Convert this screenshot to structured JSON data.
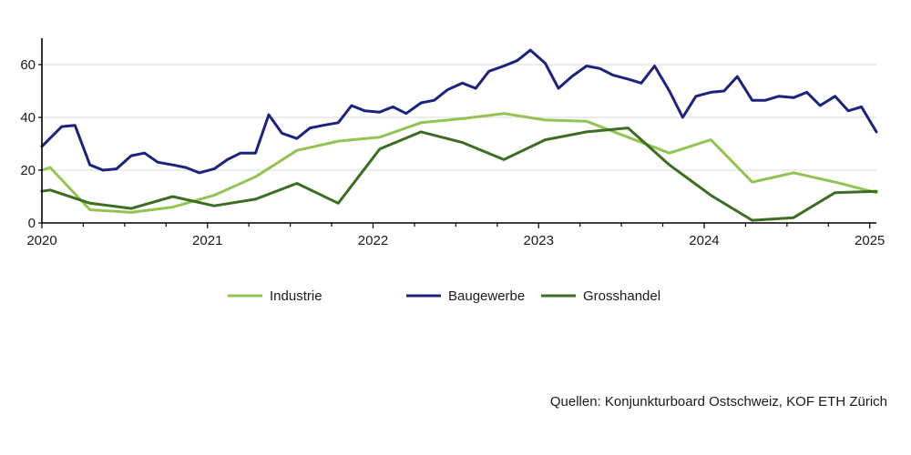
{
  "chart_data": {
    "type": "line",
    "title": "",
    "xlabel": "",
    "ylabel": "",
    "xlim": [
      2020.0,
      2025.04
    ],
    "ylim": [
      0,
      70
    ],
    "y_ticks": [
      0,
      20,
      40,
      60
    ],
    "x_ticks": [
      2020,
      2021,
      2022,
      2023,
      2024,
      2025
    ],
    "x_tick_labels": [
      "2020",
      "2021",
      "2022",
      "2023",
      "2024",
      "2025"
    ],
    "grid": "horizontal",
    "legend_position": "bottom",
    "series": [
      {
        "name": "Industrie",
        "color": "#92c353",
        "points": [
          [
            2020.0,
            20
          ],
          [
            2020.05,
            21
          ],
          [
            2020.29,
            5
          ],
          [
            2020.54,
            4
          ],
          [
            2020.79,
            6
          ],
          [
            2021.04,
            10.5
          ],
          [
            2021.29,
            17.5
          ],
          [
            2021.54,
            27.5
          ],
          [
            2021.79,
            31
          ],
          [
            2022.04,
            32.5
          ],
          [
            2022.29,
            38
          ],
          [
            2022.54,
            39.5
          ],
          [
            2022.79,
            41.5
          ],
          [
            2023.04,
            39
          ],
          [
            2023.29,
            38.5
          ],
          [
            2023.54,
            32.5
          ],
          [
            2023.79,
            26.5
          ],
          [
            2024.04,
            31.5
          ],
          [
            2024.29,
            15.5
          ],
          [
            2024.54,
            19
          ],
          [
            2024.79,
            15.5
          ],
          [
            2025.04,
            11.5
          ]
        ]
      },
      {
        "name": "Baugewerbe",
        "color": "#1a237e",
        "points": [
          [
            2020.0,
            29
          ],
          [
            2020.12,
            36.5
          ],
          [
            2020.2,
            37
          ],
          [
            2020.29,
            22
          ],
          [
            2020.37,
            20
          ],
          [
            2020.45,
            20.5
          ],
          [
            2020.54,
            25.5
          ],
          [
            2020.62,
            26.5
          ],
          [
            2020.7,
            23
          ],
          [
            2020.79,
            22
          ],
          [
            2020.87,
            21
          ],
          [
            2020.95,
            19
          ],
          [
            2021.04,
            20.5
          ],
          [
            2021.12,
            24
          ],
          [
            2021.2,
            26.5
          ],
          [
            2021.29,
            26.5
          ],
          [
            2021.37,
            41
          ],
          [
            2021.45,
            34
          ],
          [
            2021.54,
            32
          ],
          [
            2021.62,
            36
          ],
          [
            2021.7,
            37
          ],
          [
            2021.79,
            38
          ],
          [
            2021.87,
            44.5
          ],
          [
            2021.95,
            42.5
          ],
          [
            2022.04,
            42
          ],
          [
            2022.12,
            44
          ],
          [
            2022.2,
            41.5
          ],
          [
            2022.29,
            45.5
          ],
          [
            2022.37,
            46.5
          ],
          [
            2022.45,
            50.5
          ],
          [
            2022.54,
            53
          ],
          [
            2022.62,
            51
          ],
          [
            2022.7,
            57.5
          ],
          [
            2022.79,
            59.5
          ],
          [
            2022.87,
            61.5
          ],
          [
            2022.95,
            65.5
          ],
          [
            2023.04,
            60.5
          ],
          [
            2023.12,
            51
          ],
          [
            2023.2,
            55.5
          ],
          [
            2023.29,
            59.5
          ],
          [
            2023.37,
            58.5
          ],
          [
            2023.45,
            56
          ],
          [
            2023.54,
            54.5
          ],
          [
            2023.62,
            53
          ],
          [
            2023.7,
            59.5
          ],
          [
            2023.79,
            50
          ],
          [
            2023.87,
            40
          ],
          [
            2023.95,
            48
          ],
          [
            2024.04,
            49.5
          ],
          [
            2024.12,
            50
          ],
          [
            2024.2,
            55.5
          ],
          [
            2024.29,
            46.5
          ],
          [
            2024.37,
            46.5
          ],
          [
            2024.45,
            48
          ],
          [
            2024.54,
            47.5
          ],
          [
            2024.62,
            49.5
          ],
          [
            2024.7,
            44.5
          ],
          [
            2024.79,
            48
          ],
          [
            2024.87,
            42.5
          ],
          [
            2024.95,
            44
          ],
          [
            2025.04,
            34.5
          ]
        ]
      },
      {
        "name": "Grosshandel",
        "color": "#3b6e22",
        "points": [
          [
            2020.0,
            12
          ],
          [
            2020.05,
            12.5
          ],
          [
            2020.29,
            7.5
          ],
          [
            2020.54,
            5.5
          ],
          [
            2020.79,
            10
          ],
          [
            2021.04,
            6.5
          ],
          [
            2021.29,
            9
          ],
          [
            2021.54,
            15
          ],
          [
            2021.79,
            7.5
          ],
          [
            2022.04,
            28
          ],
          [
            2022.29,
            34.5
          ],
          [
            2022.54,
            30.5
          ],
          [
            2022.79,
            24
          ],
          [
            2023.04,
            31.5
          ],
          [
            2023.29,
            34.5
          ],
          [
            2023.54,
            36
          ],
          [
            2023.79,
            22
          ],
          [
            2024.04,
            10.5
          ],
          [
            2024.29,
            1
          ],
          [
            2024.54,
            2
          ],
          [
            2024.79,
            11.5
          ],
          [
            2025.04,
            12
          ]
        ]
      }
    ]
  },
  "source_text": "Quellen: Konjunkturboard Ostschweiz, KOF ETH Zürich"
}
